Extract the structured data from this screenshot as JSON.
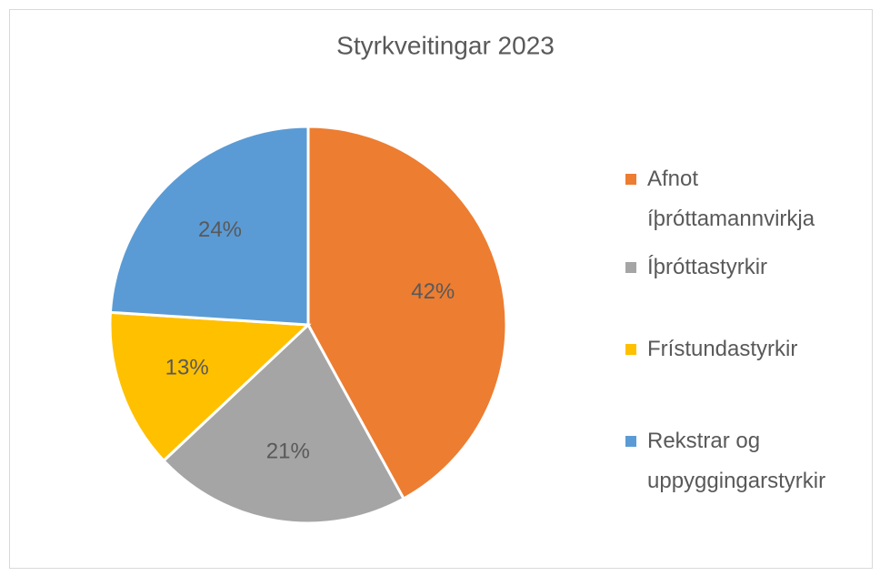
{
  "chart_data": {
    "type": "pie",
    "title": "Styrkveitingar 2023",
    "categories": [
      "Afnot íþróttamannvirkja",
      "Íþróttastyrkir",
      "Frístundastyrkir",
      "Rekstrar og uppyggingarstyrkir"
    ],
    "values": [
      42,
      21,
      13,
      24
    ],
    "value_labels": [
      "42%",
      "21%",
      "13%",
      "24%"
    ],
    "colors": [
      "#ed7d31",
      "#a5a5a5",
      "#ffc000",
      "#5b9bd5"
    ],
    "legend": "right"
  }
}
